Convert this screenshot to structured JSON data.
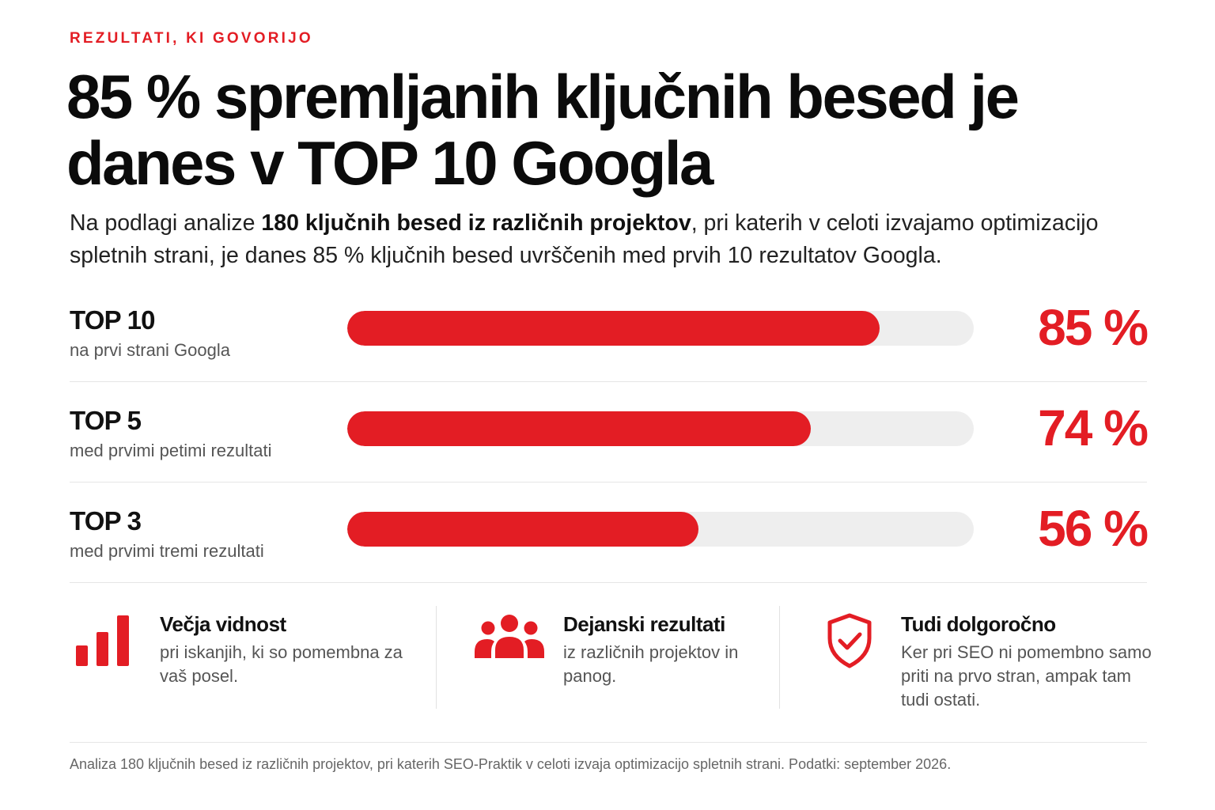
{
  "eyebrow": "REZULTATI, KI GOVORIJO",
  "title": "85 % spremljanih ključnih besed je danes v TOP 10 Googla",
  "lead": {
    "before": "Na podlagi analize ",
    "bold": "180 ključnih besed iz različnih projektov",
    "after": ", pri katerih v celoti izvajamo optimizacijo spletnih strani, je danes 85 % ključnih besed uvrščenih med prvih 10 rezultatov Googla."
  },
  "colors": {
    "accent": "#e31d24",
    "track": "#eeeeee",
    "text": "#111111",
    "muted": "#555555"
  },
  "chart_data": {
    "type": "bar",
    "orientation": "horizontal",
    "categories": [
      "TOP 10",
      "TOP 5",
      "TOP 3"
    ],
    "subtitles": [
      "na prvi strani Googla",
      "med prvimi petimi rezultati",
      "med prvimi tremi rezultati"
    ],
    "values": [
      85,
      74,
      56
    ],
    "value_labels": [
      "85 %",
      "74 %",
      "56 %"
    ],
    "unit": "%",
    "xlim": [
      0,
      100
    ],
    "grid": false
  },
  "features": [
    {
      "icon": "bar-chart-icon",
      "title": "Večja vidnost",
      "text": "pri iskanjih, ki so pomembna za vaš posel."
    },
    {
      "icon": "people-icon",
      "title": "Dejanski rezultati",
      "text": "iz različnih projektov in panog."
    },
    {
      "icon": "shield-check-icon",
      "title": "Tudi dolgoročno",
      "text": "Ker pri SEO ni pomembno samo priti na prvo stran, ampak tam tudi ostati."
    }
  ],
  "footer": "Analiza 180 ključnih besed iz različnih projektov, pri katerih SEO-Praktik v celoti izvaja optimizacijo spletnih strani. Podatki: september 2026."
}
